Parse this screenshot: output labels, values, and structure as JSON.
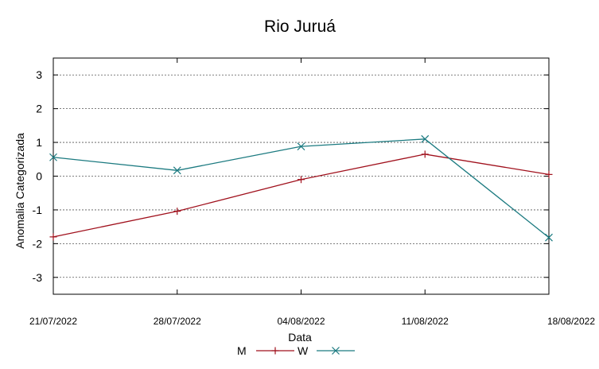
{
  "chart_data": {
    "type": "line",
    "title": "Rio Juruá",
    "xlabel": "Data",
    "ylabel": "Anomalia Categorizada",
    "categories": [
      "21/07/2022",
      "28/07/2022",
      "04/08/2022",
      "11/08/2022",
      "18/08/2022"
    ],
    "yticks": [
      "3",
      "2",
      "1",
      "0",
      "-1",
      "-2",
      "-3"
    ],
    "ylim": [
      -3.5,
      3.5
    ],
    "grid": true,
    "legend_position": "bottom",
    "series": [
      {
        "name": "M",
        "color": "#a0101c",
        "marker": "plus",
        "values": [
          -1.8,
          -1.04,
          -0.1,
          0.65,
          0.05
        ]
      },
      {
        "name": "W",
        "color": "#1b7a80",
        "marker": "cross",
        "values": [
          0.56,
          0.17,
          0.88,
          1.1,
          -1.82
        ]
      }
    ]
  }
}
